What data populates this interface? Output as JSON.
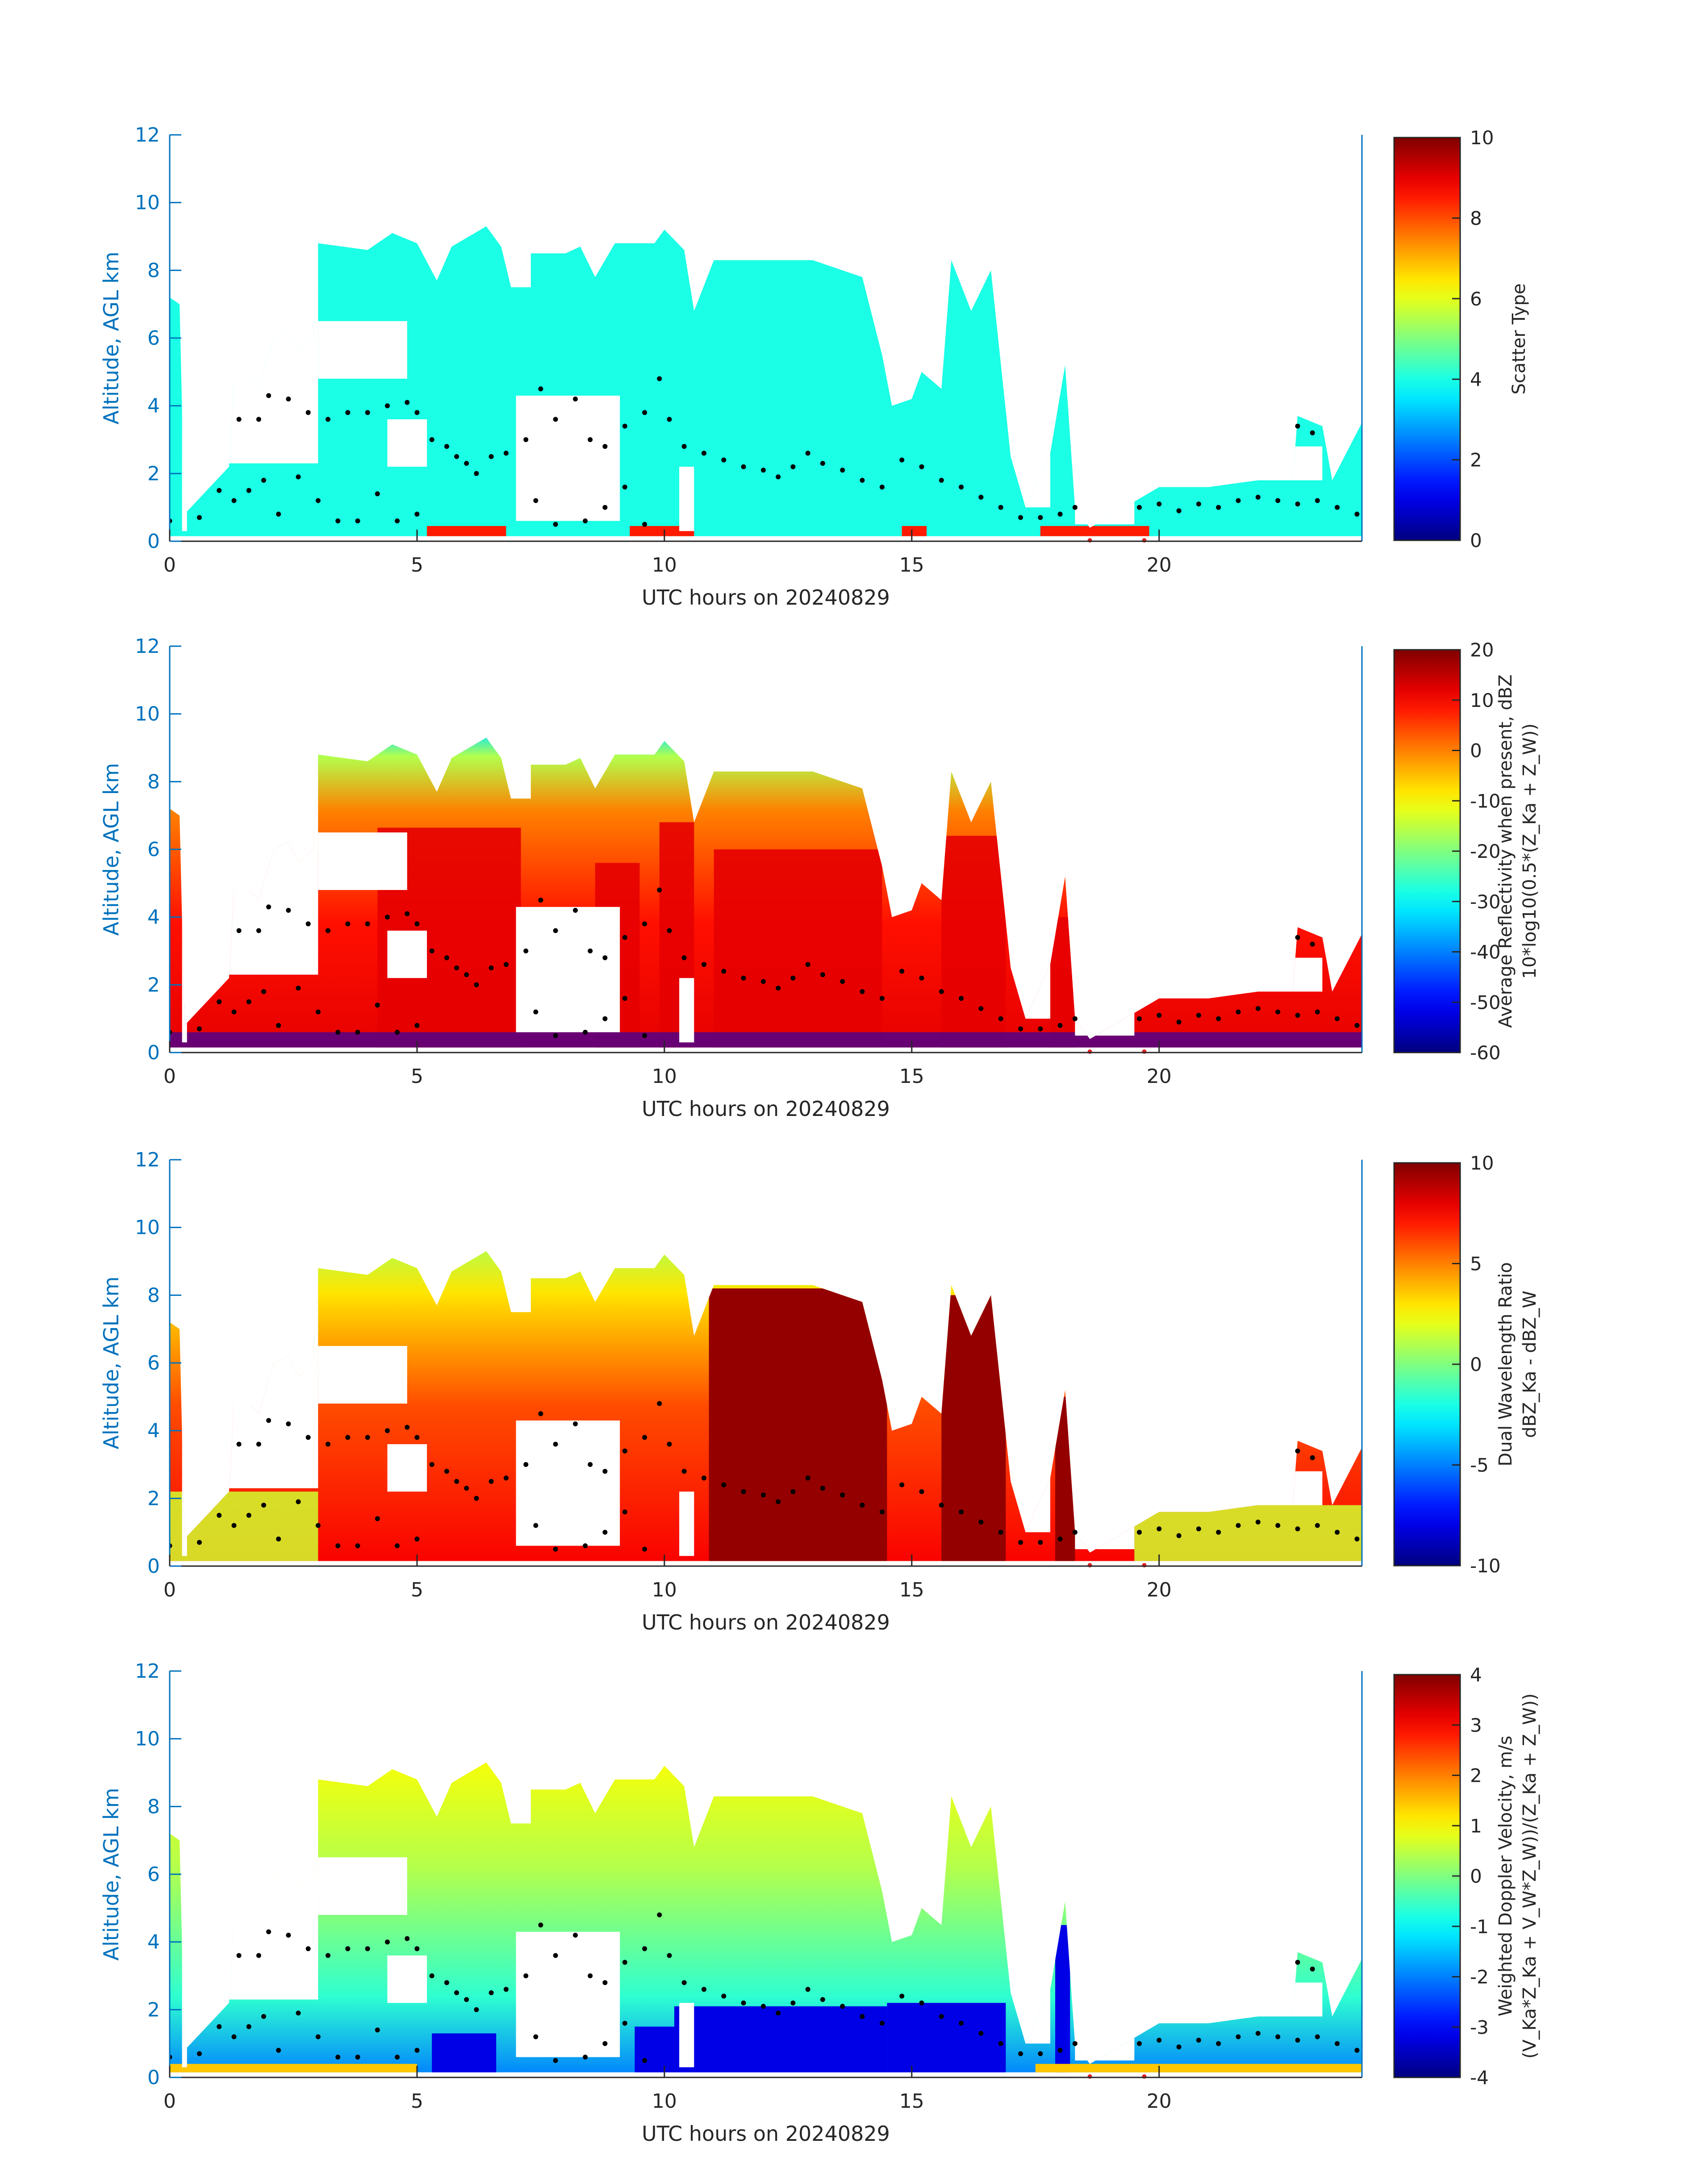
{
  "figure": {
    "x_axis_label": "UTC hours on 20240829",
    "y_axis_label": "Altitude, AGL km",
    "x_ticks": [
      0,
      5,
      10,
      15,
      20
    ],
    "y_ticks": [
      0,
      2,
      4,
      6,
      8,
      10,
      12
    ],
    "xlim": [
      0,
      24.1
    ],
    "ylim": [
      0,
      12
    ]
  },
  "chart_data": [
    {
      "type": "heatmap",
      "xlabel": "UTC hours on 20240829",
      "ylabel": "Altitude, AGL km",
      "xlim": [
        0,
        24.1
      ],
      "ylim": [
        0,
        12
      ],
      "colorbar": {
        "title_lines": [
          "Scatter Type"
        ],
        "min": 0,
        "max": 10,
        "ticks": [
          0,
          2,
          4,
          6,
          8,
          10
        ],
        "colormap": "jet"
      },
      "dominant_value": 4,
      "low_level_value": 8.5
    },
    {
      "type": "heatmap",
      "xlabel": "UTC hours on 20240829",
      "ylabel": "Altitude, AGL km",
      "xlim": [
        0,
        24.1
      ],
      "ylim": [
        0,
        12
      ],
      "colorbar": {
        "title_lines": [
          "Average Reflectivity when present, dBZ",
          "10*log10(0.5*(Z_Ka + Z_W))"
        ],
        "min": -60,
        "max": 20,
        "ticks": [
          -60,
          -50,
          -40,
          -30,
          -20,
          -10,
          0,
          10,
          20
        ],
        "colormap": "jet"
      }
    },
    {
      "type": "heatmap",
      "xlabel": "UTC hours on 20240829",
      "ylabel": "Altitude, AGL km",
      "xlim": [
        0,
        24.1
      ],
      "ylim": [
        0,
        12
      ],
      "colorbar": {
        "title_lines": [
          "Dual Wavelength Ratio",
          "dBZ_Ka - dBZ_W"
        ],
        "min": -10,
        "max": 10,
        "ticks": [
          -10,
          -5,
          0,
          5,
          10
        ],
        "colormap": "jet"
      }
    },
    {
      "type": "heatmap",
      "xlabel": "UTC hours on 20240829",
      "ylabel": "Altitude, AGL km",
      "xlim": [
        0,
        24.1
      ],
      "ylim": [
        0,
        12
      ],
      "colorbar": {
        "title_lines": [
          "Weighted Doppler Velocity, m/s",
          "(V_Ka*Z_Ka + V_W*Z_W))/(Z_Ka + Z_W))"
        ],
        "min": -4,
        "max": 4,
        "ticks": [
          -4,
          -3,
          -2,
          -1,
          0,
          1,
          2,
          3,
          4
        ],
        "colormap": "jet"
      }
    }
  ],
  "cloud_echo": {
    "top_km": [
      [
        0.0,
        7.2
      ],
      [
        0.2,
        7.0
      ],
      [
        0.3,
        0.8
      ],
      [
        1.2,
        2.2
      ],
      [
        1.3,
        4.8
      ],
      [
        1.6,
        4.8
      ],
      [
        1.8,
        4.5
      ],
      [
        2.1,
        6.0
      ],
      [
        2.4,
        6.2
      ],
      [
        2.6,
        5.6
      ],
      [
        2.9,
        6.0
      ],
      [
        3.0,
        8.8
      ],
      [
        4.0,
        8.6
      ],
      [
        4.5,
        9.1
      ],
      [
        5.0,
        8.8
      ],
      [
        5.4,
        7.7
      ],
      [
        5.7,
        8.7
      ],
      [
        6.4,
        9.3
      ],
      [
        6.7,
        8.7
      ],
      [
        6.9,
        7.5
      ],
      [
        7.3,
        8.5
      ],
      [
        8.0,
        8.5
      ],
      [
        8.3,
        8.7
      ],
      [
        8.6,
        7.8
      ],
      [
        9.0,
        8.8
      ],
      [
        9.8,
        8.8
      ],
      [
        10.0,
        9.2
      ],
      [
        10.4,
        8.6
      ],
      [
        10.6,
        6.8
      ],
      [
        11.0,
        8.3
      ],
      [
        12.0,
        8.3
      ],
      [
        13.0,
        8.3
      ],
      [
        14.0,
        7.8
      ],
      [
        14.4,
        5.5
      ],
      [
        14.6,
        4.0
      ],
      [
        15.0,
        4.2
      ],
      [
        15.2,
        5.0
      ],
      [
        15.6,
        4.5
      ],
      [
        15.8,
        8.3
      ],
      [
        16.2,
        6.8
      ],
      [
        16.6,
        8.0
      ],
      [
        17.0,
        2.5
      ],
      [
        17.3,
        1.0
      ],
      [
        17.8,
        2.6
      ],
      [
        18.1,
        5.2
      ],
      [
        18.3,
        1.0
      ],
      [
        18.6,
        0.4
      ],
      [
        20.0,
        1.6
      ],
      [
        21.0,
        1.6
      ],
      [
        22.0,
        1.8
      ],
      [
        22.7,
        1.8
      ],
      [
        22.8,
        3.7
      ],
      [
        23.3,
        3.4
      ],
      [
        23.5,
        1.8
      ],
      [
        24.1,
        3.5
      ]
    ],
    "gaps": [
      [
        0.25,
        0.35,
        0.3,
        12
      ],
      [
        0.3,
        3.0,
        2.3,
        12
      ],
      [
        3.0,
        4.8,
        4.8,
        6.5
      ],
      [
        6.9,
        7.3,
        7.5,
        12
      ],
      [
        4.4,
        5.2,
        2.2,
        3.6
      ],
      [
        7.0,
        9.1,
        0.6,
        4.3
      ],
      [
        10.3,
        10.6,
        0.3,
        2.2
      ],
      [
        17.3,
        17.8,
        1.0,
        12
      ],
      [
        18.3,
        19.5,
        0.5,
        12
      ],
      [
        22.7,
        23.3,
        1.8,
        2.8
      ]
    ]
  },
  "melting_layer_markers": {
    "upper": [
      [
        1.4,
        3.6
      ],
      [
        1.8,
        3.6
      ],
      [
        2.0,
        4.3
      ],
      [
        2.4,
        4.2
      ],
      [
        2.8,
        3.8
      ],
      [
        3.2,
        3.6
      ],
      [
        3.6,
        3.8
      ],
      [
        4.0,
        3.8
      ],
      [
        4.4,
        4.0
      ],
      [
        4.8,
        4.1
      ],
      [
        5.0,
        3.8
      ],
      [
        5.3,
        3.0
      ],
      [
        5.6,
        2.8
      ],
      [
        5.8,
        2.5
      ],
      [
        6.0,
        2.3
      ],
      [
        6.2,
        2.0
      ],
      [
        6.5,
        2.5
      ],
      [
        6.8,
        2.6
      ],
      [
        7.2,
        3.0
      ],
      [
        7.5,
        4.5
      ],
      [
        7.8,
        3.6
      ],
      [
        8.2,
        4.2
      ],
      [
        8.5,
        3.0
      ],
      [
        8.8,
        2.8
      ],
      [
        9.2,
        3.4
      ],
      [
        9.6,
        3.8
      ],
      [
        9.9,
        4.8
      ],
      [
        10.1,
        3.6
      ],
      [
        10.4,
        2.8
      ],
      [
        10.8,
        2.6
      ],
      [
        11.2,
        2.4
      ],
      [
        11.6,
        2.2
      ],
      [
        12.0,
        2.1
      ],
      [
        12.3,
        1.9
      ],
      [
        12.6,
        2.2
      ],
      [
        12.9,
        2.6
      ],
      [
        13.2,
        2.3
      ],
      [
        13.6,
        2.1
      ],
      [
        14.0,
        1.8
      ],
      [
        14.4,
        1.6
      ],
      [
        14.8,
        2.4
      ],
      [
        15.2,
        2.2
      ],
      [
        15.6,
        1.8
      ],
      [
        16.0,
        1.6
      ],
      [
        16.4,
        1.3
      ],
      [
        16.8,
        1.0
      ],
      [
        17.2,
        0.7
      ],
      [
        17.6,
        0.7
      ],
      [
        18.0,
        0.8
      ],
      [
        18.3,
        1.0
      ]
    ],
    "lower": [
      [
        0.0,
        0.6
      ],
      [
        0.6,
        0.7
      ],
      [
        1.0,
        1.5
      ],
      [
        1.3,
        1.2
      ],
      [
        1.6,
        1.5
      ],
      [
        1.9,
        1.8
      ],
      [
        2.2,
        0.8
      ],
      [
        2.6,
        1.9
      ],
      [
        3.0,
        1.2
      ],
      [
        3.4,
        0.6
      ],
      [
        3.8,
        0.6
      ],
      [
        4.2,
        1.4
      ],
      [
        4.6,
        0.6
      ],
      [
        5.0,
        0.8
      ],
      [
        7.4,
        1.2
      ],
      [
        7.8,
        0.5
      ],
      [
        8.4,
        0.6
      ],
      [
        8.8,
        1.0
      ],
      [
        9.2,
        1.6
      ],
      [
        9.6,
        0.5
      ],
      [
        19.6,
        1.0
      ],
      [
        20.0,
        1.1
      ],
      [
        20.4,
        0.9
      ],
      [
        20.8,
        1.1
      ],
      [
        21.2,
        1.0
      ],
      [
        21.6,
        1.2
      ],
      [
        22.0,
        1.3
      ],
      [
        22.4,
        1.2
      ],
      [
        22.8,
        1.1
      ],
      [
        23.2,
        1.2
      ],
      [
        23.6,
        1.0
      ],
      [
        24.0,
        0.8
      ],
      [
        22.8,
        3.4
      ],
      [
        23.1,
        3.2
      ]
    ]
  }
}
